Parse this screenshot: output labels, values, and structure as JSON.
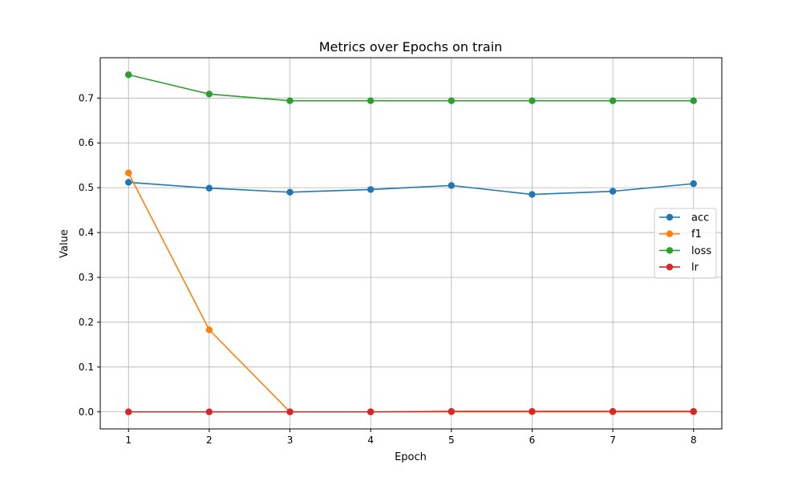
{
  "chart_data": {
    "type": "line",
    "title": "Metrics over Epochs on train",
    "xlabel": "Epoch",
    "ylabel": "Value",
    "x": [
      1,
      2,
      3,
      4,
      5,
      6,
      7,
      8
    ],
    "xlim": [
      0.65,
      8.35
    ],
    "ylim": [
      -0.038,
      0.79
    ],
    "xticks": [
      "1",
      "2",
      "3",
      "4",
      "5",
      "6",
      "7",
      "8"
    ],
    "yticks": [
      "0.0",
      "0.1",
      "0.2",
      "0.3",
      "0.4",
      "0.5",
      "0.6",
      "0.7"
    ],
    "grid": true,
    "legend_position": "center-right",
    "series": [
      {
        "name": "acc",
        "color": "#1f77b4",
        "values": [
          0.512,
          0.499,
          0.49,
          0.496,
          0.505,
          0.485,
          0.492,
          0.509
        ]
      },
      {
        "name": "f1",
        "color": "#ff7f0e",
        "values": [
          0.533,
          0.183,
          0.0,
          0.0,
          0.0,
          0.0,
          0.0,
          0.0
        ]
      },
      {
        "name": "loss",
        "color": "#2ca02c",
        "values": [
          0.752,
          0.709,
          0.694,
          0.694,
          0.694,
          0.694,
          0.694,
          0.694
        ]
      },
      {
        "name": "lr",
        "color": "#d62728",
        "values": [
          0.0,
          0.0,
          0.0,
          0.0,
          0.001,
          0.001,
          0.001,
          0.001
        ]
      }
    ]
  }
}
